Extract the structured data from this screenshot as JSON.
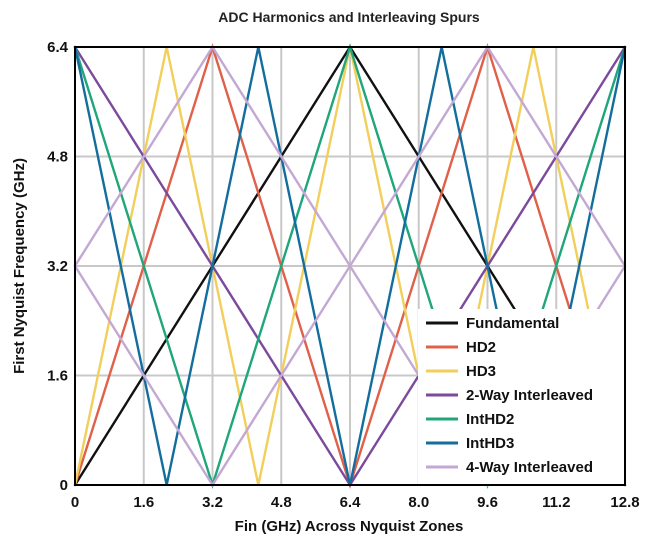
{
  "chart_data": {
    "type": "line",
    "title": "ADC Harmonics and Interleaving Spurs",
    "xlabel": "Fin (GHz) Across Nyquist Zones",
    "ylabel": "First Nyquist Frequency (GHz)",
    "xlim": [
      0,
      12.8
    ],
    "ylim": [
      0,
      6.4
    ],
    "x_ticks": [
      "0",
      "1.6",
      "3.2",
      "4.8",
      "6.4",
      "8.0",
      "9.6",
      "11.2",
      "12.8"
    ],
    "y_ticks": [
      "0",
      "1.6",
      "3.2",
      "4.8",
      "6.4"
    ],
    "grid": true,
    "legend_position": "bottom-right",
    "series": [
      {
        "name": "Fundamental",
        "color": "#111111",
        "x": [
          0,
          6.4,
          12.8
        ],
        "y": [
          0,
          6.4,
          0
        ]
      },
      {
        "name": "HD2",
        "color": "#e0604a",
        "x": [
          0,
          3.2,
          6.4,
          9.6,
          12.8
        ],
        "y": [
          0,
          6.4,
          0,
          6.4,
          0
        ]
      },
      {
        "name": "HD3",
        "color": "#f2cf5b",
        "x": [
          0,
          2.1333,
          4.2667,
          6.4,
          8.5333,
          10.6667,
          12.8
        ],
        "y": [
          0,
          6.4,
          0,
          6.4,
          0,
          6.4,
          0
        ]
      },
      {
        "name": "2-Way Interleaved",
        "color": "#7b4a9c",
        "x": [
          0,
          6.4,
          12.8
        ],
        "y": [
          6.4,
          0,
          6.4
        ]
      },
      {
        "name": "IntHD2",
        "color": "#1fa67a",
        "x": [
          0,
          3.2,
          6.4,
          9.6,
          12.8
        ],
        "y": [
          6.4,
          0,
          6.4,
          0,
          6.4
        ]
      },
      {
        "name": "IntHD3",
        "color": "#136e9e",
        "x": [
          0,
          2.1333,
          4.2667,
          6.4,
          8.5333,
          10.6667,
          12.8
        ],
        "y": [
          6.4,
          0,
          6.4,
          0,
          6.4,
          0,
          6.4
        ]
      },
      {
        "name": "4-Way Interleaved",
        "color": "#c3a8d4",
        "x": [
          0,
          3.2,
          6.4,
          9.6,
          12.8
        ],
        "y": [
          3.2,
          6.4,
          3.2,
          6.4,
          3.2
        ]
      },
      {
        "name": "",
        "color": "#c3a8d4",
        "x": [
          0,
          3.2,
          6.4,
          9.6,
          12.8
        ],
        "y": [
          3.2,
          0,
          3.2,
          0,
          3.2
        ]
      }
    ]
  }
}
